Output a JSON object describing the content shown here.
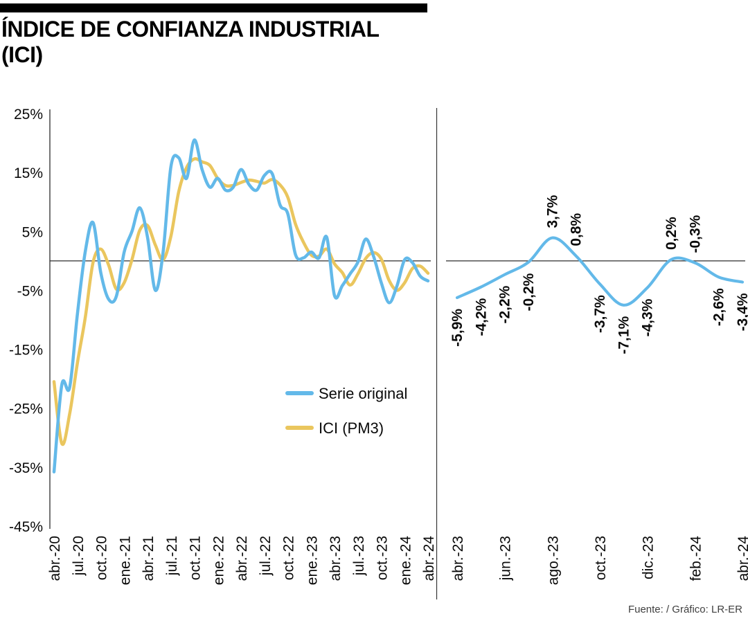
{
  "title": {
    "line1": "ÍNDICE DE CONFIANZA INDUSTRIAL",
    "line2": "(ICI)"
  },
  "footer": "Fuente: / Gráfico: LR-ER",
  "colors": {
    "serie_original": "#63b9e9",
    "ici_pm3": "#eac65e",
    "axis": "#2b2b2b",
    "label_text": "#0a0a0a"
  },
  "chart_data": [
    {
      "type": "line",
      "panel": "left",
      "title": "",
      "ylim": [
        -45,
        25
      ],
      "yticks": [
        "25%",
        "15%",
        "5%",
        "-5%",
        "-15%",
        "-25%",
        "-35%",
        "-45%"
      ],
      "x_label_every": 3,
      "x_tick_labels": [
        "abr.-20",
        "jul.-20",
        "oct.-20",
        "ene.-21",
        "abr.-21",
        "jul.-21",
        "oct.-21",
        "ene.-22",
        "abr.-22",
        "jul.-22",
        "oct.-22",
        "ene.-23",
        "abr.-23",
        "jul.-23",
        "oct.-23",
        "ene.-24",
        "abr.-24"
      ],
      "legend_position": "inside-bottom-right",
      "series": [
        {
          "name": "Serie original",
          "color": "#63b9e9",
          "values": [
            -35.8,
            -21,
            -21.5,
            -9,
            1.5,
            6.5,
            -2,
            -6.5,
            -6,
            1.5,
            5,
            9,
            4,
            -5,
            1.5,
            16,
            17.5,
            14,
            20.5,
            15.5,
            12.5,
            14,
            12,
            12.5,
            15.5,
            13,
            12,
            14.5,
            14.8,
            9.5,
            8,
            1,
            0.5,
            1.5,
            0.5,
            4,
            -5.9,
            -4.2,
            -2.2,
            -0.2,
            3.7,
            0.8,
            -3.7,
            -7.1,
            -4.3,
            0.2,
            -0.3,
            -2.6,
            -3.4
          ]
        },
        {
          "name": "ICI (PM3)",
          "color": "#eac65e",
          "values": [
            -20.5,
            -31,
            -26,
            -17.3,
            -9.7,
            -0.3,
            2,
            -0.7,
            -4.8,
            -3.7,
            0.2,
            5.2,
            6,
            2.7,
            0.2,
            4.2,
            11.7,
            15.8,
            17.3,
            16.8,
            16.2,
            14,
            12.8,
            12.8,
            13.3,
            13.7,
            13.5,
            13.2,
            13.8,
            12.9,
            10.8,
            6.2,
            3.2,
            1,
            0.8,
            2,
            -0.5,
            -2,
            -4.1,
            -2.2,
            0.4,
            1.4,
            0.3,
            -3.3,
            -5,
            -3.7,
            -1.3,
            -0.9,
            -2.1
          ]
        }
      ]
    },
    {
      "type": "line",
      "panel": "right",
      "series_name": "Serie original",
      "color": "#63b9e9",
      "x_tick_labels": [
        "abr.-23",
        "jun.-23",
        "ago.-23",
        "oct.-23",
        "dic.-23",
        "feb.-24",
        "abr.-24"
      ],
      "x_tick_positions": [
        0,
        2,
        4,
        6,
        8,
        10,
        12
      ],
      "values": [
        -5.9,
        -4.2,
        -2.2,
        -0.2,
        3.7,
        0.8,
        -3.7,
        -7.1,
        -4.3,
        0.2,
        -0.3,
        -2.6,
        -3.4
      ],
      "point_labels": [
        "-5,9%",
        "-4,2%",
        "-2,2%",
        "-0,2%",
        "3,7%",
        "0,8%",
        "-3,7%",
        "-7,1%",
        "-4,3%",
        "0,2%",
        "-0,3%",
        "-2,6%",
        "-3,4%"
      ],
      "label_above": [
        false,
        false,
        false,
        false,
        true,
        true,
        false,
        false,
        false,
        true,
        true,
        false,
        false
      ]
    }
  ]
}
